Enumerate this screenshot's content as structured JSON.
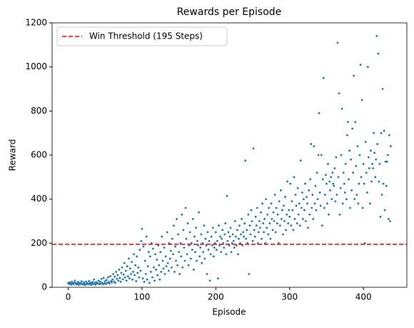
{
  "chart_data": {
    "type": "scatter",
    "title": "Rewards per Episode",
    "x_label": "Episode",
    "y_label": "Reward",
    "x": [
      0,
      1,
      2,
      3,
      4,
      5,
      6,
      7,
      8,
      9,
      10,
      11,
      12,
      13,
      14,
      15,
      16,
      17,
      18,
      19,
      20,
      21,
      22,
      23,
      24,
      25,
      26,
      27,
      28,
      29,
      30,
      31,
      32,
      33,
      34,
      35,
      36,
      37,
      38,
      39,
      40,
      41,
      42,
      43,
      44,
      45,
      46,
      47,
      48,
      49,
      50,
      51,
      52,
      53,
      54,
      55,
      56,
      57,
      58,
      59,
      60,
      61,
      62,
      63,
      64,
      65,
      66,
      67,
      68,
      69,
      70,
      71,
      72,
      73,
      74,
      75,
      76,
      77,
      78,
      79,
      80,
      81,
      82,
      83,
      84,
      85,
      86,
      87,
      88,
      89,
      90,
      91,
      92,
      93,
      94,
      95,
      96,
      97,
      98,
      99,
      100,
      101,
      102,
      103,
      104,
      105,
      106,
      107,
      108,
      109,
      110,
      111,
      112,
      113,
      114,
      115,
      116,
      117,
      118,
      119,
      120,
      121,
      122,
      123,
      124,
      125,
      126,
      127,
      128,
      129,
      130,
      131,
      132,
      133,
      134,
      135,
      136,
      137,
      138,
      139,
      140,
      141,
      142,
      143,
      144,
      145,
      146,
      147,
      148,
      149,
      150,
      151,
      152,
      153,
      154,
      155,
      156,
      157,
      158,
      159,
      160,
      161,
      162,
      163,
      164,
      165,
      166,
      167,
      168,
      169,
      170,
      171,
      172,
      173,
      174,
      175,
      176,
      177,
      178,
      179,
      180,
      181,
      182,
      183,
      184,
      185,
      186,
      187,
      188,
      189,
      190,
      191,
      192,
      193,
      194,
      195,
      196,
      197,
      198,
      199,
      200,
      201,
      202,
      203,
      204,
      205,
      206,
      207,
      208,
      209,
      210,
      211,
      212,
      213,
      214,
      215,
      216,
      217,
      218,
      219,
      220,
      221,
      222,
      223,
      224,
      225,
      226,
      227,
      228,
      229,
      230,
      231,
      232,
      233,
      234,
      235,
      236,
      237,
      238,
      239,
      240,
      241,
      242,
      243,
      244,
      245,
      246,
      247,
      248,
      249,
      250,
      251,
      252,
      253,
      254,
      255,
      256,
      257,
      258,
      259,
      260,
      261,
      262,
      263,
      264,
      265,
      266,
      267,
      268,
      269,
      270,
      271,
      272,
      273,
      274,
      275,
      276,
      277,
      278,
      279,
      280,
      281,
      282,
      283,
      284,
      285,
      286,
      287,
      288,
      289,
      290,
      291,
      292,
      293,
      294,
      295,
      296,
      297,
      298,
      299,
      300,
      301,
      302,
      303,
      304,
      305,
      306,
      307,
      308,
      309,
      310,
      311,
      312,
      313,
      314,
      315,
      316,
      317,
      318,
      319,
      320,
      321,
      322,
      323,
      324,
      325,
      326,
      327,
      328,
      329,
      330,
      331,
      332,
      333,
      334,
      335,
      336,
      337,
      338,
      339,
      340,
      341,
      342,
      343,
      344,
      345,
      346,
      347,
      348,
      349,
      350,
      351,
      352,
      353,
      354,
      355,
      356,
      357,
      358,
      359,
      360,
      361,
      362,
      363,
      364,
      365,
      366,
      367,
      368,
      369,
      370,
      371,
      372,
      373,
      374,
      375,
      376,
      377,
      378,
      379,
      380,
      381,
      382,
      383,
      384,
      385,
      386,
      387,
      388,
      389,
      390,
      391,
      392,
      393,
      394,
      395,
      396,
      397,
      398,
      399,
      400,
      401,
      402,
      403,
      404,
      405,
      406,
      407,
      408,
      409,
      410,
      411,
      412,
      413,
      414,
      415,
      416,
      417,
      418,
      419,
      420,
      421,
      422,
      423,
      424,
      425,
      426,
      427,
      428,
      429,
      430,
      431,
      432,
      433,
      434,
      435,
      436,
      437
    ],
    "values": [
      18,
      22,
      15,
      20,
      12,
      25,
      17,
      14,
      21,
      30,
      19,
      13,
      16,
      24,
      11,
      20,
      15,
      18,
      27,
      14,
      12,
      22,
      17,
      10,
      26,
      15,
      19,
      13,
      28,
      16,
      21,
      11,
      18,
      24,
      14,
      35,
      20,
      12,
      23,
      17,
      19,
      30,
      14,
      25,
      16,
      38,
      21,
      13,
      42,
      18,
      27,
      15,
      33,
      20,
      45,
      24,
      17,
      50,
      28,
      22,
      35,
      60,
      26,
      48,
      20,
      70,
      38,
      55,
      30,
      80,
      42,
      25,
      65,
      90,
      36,
      58,
      110,
      45,
      75,
      30,
      95,
      50,
      130,
      40,
      85,
      60,
      115,
      35,
      70,
      150,
      55,
      100,
      28,
      140,
      65,
      90,
      45,
      170,
      75,
      210,
      265,
      40,
      185,
      25,
      120,
      60,
      230,
      35,
      95,
      160,
      20,
      140,
      70,
      200,
      45,
      175,
      90,
      30,
      150,
      80,
      125,
      55,
      190,
      100,
      35,
      160,
      70,
      230,
      120,
      85,
      180,
      60,
      140,
      95,
      250,
      110,
      75,
      200,
      130,
      165,
      90,
      220,
      150,
      280,
      70,
      185,
      120,
      310,
      100,
      240,
      160,
      60,
      200,
      140,
      330,
      90,
      260,
      180,
      120,
      360,
      220,
      150,
      290,
      100,
      190,
      250,
      130,
      200,
      170,
      310,
      80,
      230,
      160,
      270,
      120,
      210,
      190,
      340,
      140,
      180,
      240,
      110,
      200,
      160,
      280,
      130,
      220,
      190,
      60,
      250,
      170,
      210,
      30,
      150,
      230,
      190,
      270,
      140,
      180,
      200,
      250,
      170,
      210,
      40,
      280,
      190,
      230,
      160,
      220,
      260,
      200,
      180,
      240,
      290,
      150,
      415,
      210,
      250,
      190,
      230,
      270,
      160,
      200,
      240,
      210,
      180,
      300,
      230,
      190,
      260,
      150,
      220,
      280,
      200,
      240,
      310,
      190,
      250,
      230,
      290,
      575,
      220,
      260,
      200,
      330,
      60,
      280,
      240,
      350,
      300,
      210,
      630,
      260,
      230,
      320,
      280,
      360,
      200,
      250,
      300,
      270,
      340,
      220,
      380,
      290,
      250,
      310,
      200,
      400,
      270,
      330,
      240,
      360,
      290,
      220,
      380,
      310,
      260,
      340,
      300,
      420,
      250,
      360,
      290,
      330,
      200,
      390,
      280,
      440,
      310,
      350,
      240,
      370,
      300,
      410,
      260,
      330,
      480,
      290,
      350,
      320,
      470,
      280,
      390,
      350,
      260,
      500,
      310,
      420,
      370,
      290,
      450,
      330,
      380,
      280,
      575,
      360,
      430,
      310,
      400,
      350,
      470,
      300,
      410,
      380,
      270,
      440,
      330,
      490,
      650,
      360,
      420,
      310,
      640,
      380,
      460,
      350,
      520,
      400,
      600,
      790,
      430,
      370,
      600,
      280,
      490,
      950,
      360,
      420,
      510,
      470,
      380,
      560,
      330,
      480,
      440,
      500,
      400,
      520,
      470,
      460,
      540,
      390,
      590,
      420,
      1110,
      500,
      880,
      330,
      450,
      600,
      810,
      380,
      520,
      470,
      430,
      560,
      400,
      690,
      750,
      490,
      620,
      360,
      580,
      440,
      720,
      520,
      960,
      400,
      750,
      550,
      420,
      640,
      380,
      470,
      600,
      1010,
      500,
      850,
      360,
      560,
      470,
      200,
      660,
      520,
      430,
      1000,
      590,
      540,
      380,
      620,
      480,
      560,
      540,
      700,
      610,
      500,
      580,
      1140,
      650,
      1060,
      480,
      560,
      320,
      700,
      420,
      900,
      470,
      710,
      350,
      570,
      460,
      570,
      600,
      310,
      690,
      300,
      640
    ],
    "color": "#1f77b4",
    "xlim": [
      -21.85,
      458.85
    ],
    "xticks": [
      0,
      100,
      200,
      300,
      400
    ],
    "ylim": [
      0,
      1200
    ],
    "yticks": [
      0,
      200,
      400,
      600,
      800,
      1000,
      1200
    ],
    "threshold": {
      "name": "Win Threshold (195 Steps)",
      "value": 195,
      "color": "#ff0000"
    },
    "legend": "upper left"
  }
}
